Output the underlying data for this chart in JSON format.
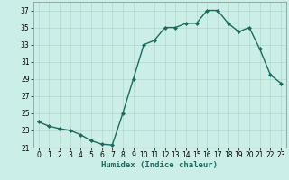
{
  "x": [
    0,
    1,
    2,
    3,
    4,
    5,
    6,
    7,
    8,
    9,
    10,
    11,
    12,
    13,
    14,
    15,
    16,
    17,
    18,
    19,
    20,
    21,
    22,
    23
  ],
  "y": [
    24.0,
    23.5,
    23.2,
    23.0,
    22.5,
    21.8,
    21.4,
    21.3,
    25.0,
    29.0,
    33.0,
    33.5,
    35.0,
    35.0,
    35.5,
    35.5,
    37.0,
    37.0,
    35.5,
    34.5,
    35.0,
    32.5,
    29.5,
    28.5
  ],
  "line_color": "#1a6b5e",
  "marker": "D",
  "marker_size": 2,
  "bg_color": "#cceee8",
  "grid_color": "#b0d8ce",
  "xlabel": "Humidex (Indice chaleur)",
  "ylim": [
    21,
    38
  ],
  "yticks": [
    21,
    23,
    25,
    27,
    29,
    31,
    33,
    35,
    37
  ],
  "xlim": [
    -0.5,
    23.5
  ],
  "xticks": [
    0,
    1,
    2,
    3,
    4,
    5,
    6,
    7,
    8,
    9,
    10,
    11,
    12,
    13,
    14,
    15,
    16,
    17,
    18,
    19,
    20,
    21,
    22,
    23
  ],
  "tick_fontsize": 5.5,
  "xlabel_fontsize": 6.5,
  "linewidth": 1.0
}
